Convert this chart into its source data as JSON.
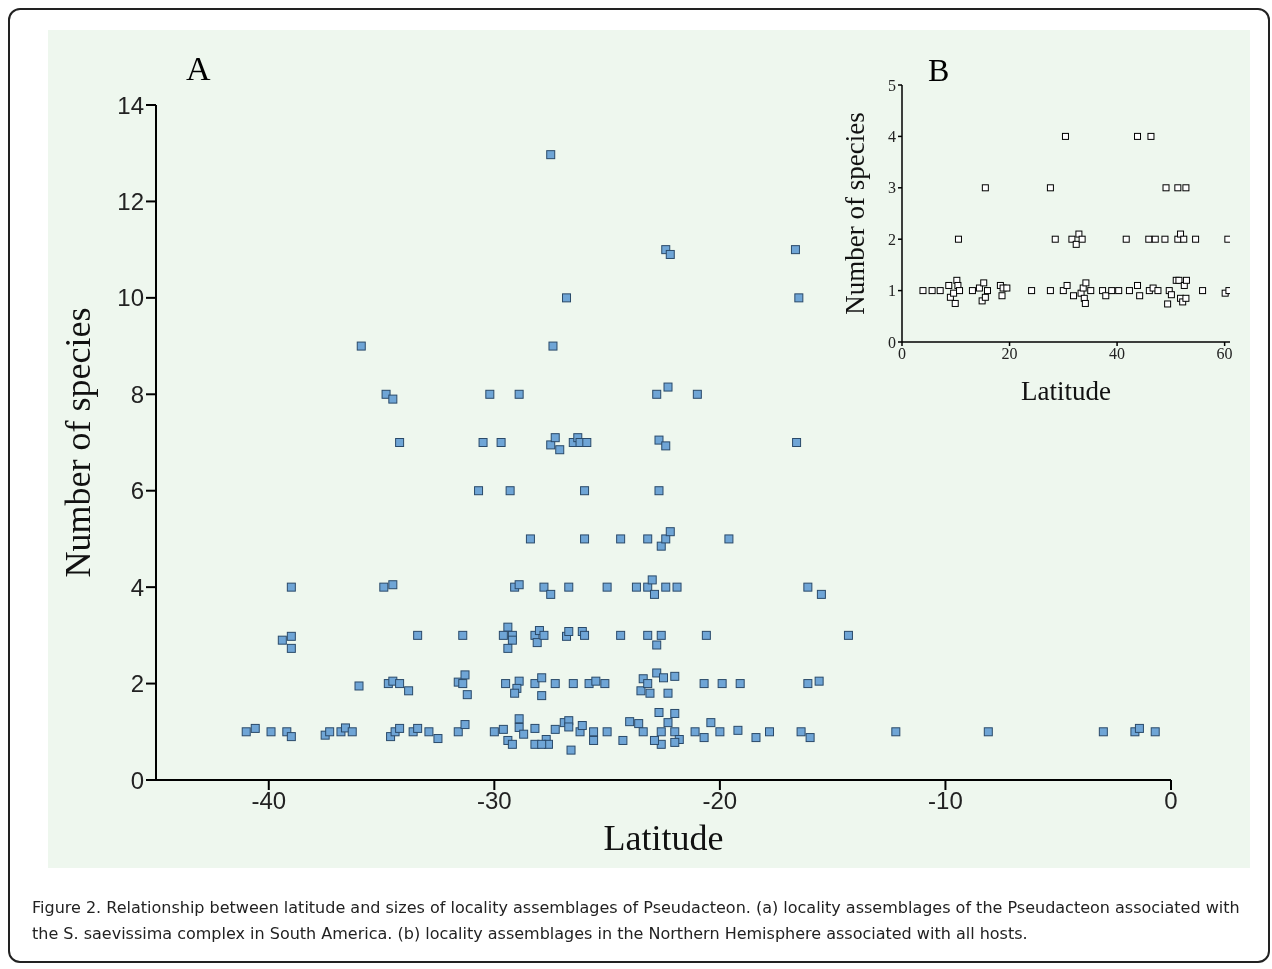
{
  "chart_data": [
    {
      "type": "scatter",
      "title": "A",
      "xlabel": "Latitude",
      "ylabel": "Number of species",
      "xlim": [
        -45,
        0
      ],
      "xticks": [
        -40,
        -30,
        -20,
        -10,
        0
      ],
      "ylim": [
        0,
        14
      ],
      "yticks": [
        0,
        2,
        4,
        6,
        8,
        10,
        12,
        14
      ],
      "marker": "square",
      "grid": false,
      "legend": false,
      "annotations": [
        "Figure 2. Relationship between latitude and sizes of locality assemblages of Pseudacteon. (a) locality assemblages of the Pseudacteon associated with the S. saevissima complex in South America. (b) locality assemblages in the Northern Hemisphere associated with all hosts."
      ],
      "series": [
        {
          "color": "#6fa5d6",
          "x": [
            -27.5,
            -22.4,
            -22.2,
            -16.65,
            -26.8,
            -16.5,
            -35.9,
            -27.4,
            -34.8,
            -34.5,
            -30.2,
            -28.9,
            -22.8,
            -22.3,
            -21.0,
            -34.2,
            -30.5,
            -29.7,
            -27.5,
            -27.3,
            -27.1,
            -26.5,
            -26.3,
            -26.2,
            -25.9,
            -22.7,
            -22.4,
            -16.6,
            -30.7,
            -29.3,
            -26.0,
            -22.7,
            -28.4,
            -26.0,
            -24.4,
            -23.2,
            -22.6,
            -22.4,
            -22.2,
            -19.6,
            -39.0,
            -34.9,
            -34.5,
            -29.1,
            -28.9,
            -27.8,
            -27.5,
            -26.7,
            -25.0,
            -23.7,
            -23.2,
            -23.0,
            -22.9,
            -22.4,
            -21.9,
            -16.1,
            -15.5,
            -39.4,
            -39.0,
            -39.0,
            -33.4,
            -31.4,
            -29.4,
            -29.6,
            -29.2,
            -29.2,
            -29.4,
            -28.2,
            -28.0,
            -28.1,
            -27.8,
            -26.8,
            -26.7,
            -26.1,
            -26.0,
            -24.4,
            -23.2,
            -22.6,
            -22.8,
            -20.6,
            -14.3,
            -36.0,
            -34.7,
            -34.5,
            -34.2,
            -33.8,
            -31.6,
            -31.3,
            -31.4,
            -31.2,
            -29.5,
            -28.9,
            -29.0,
            -29.1,
            -28.2,
            -27.9,
            -27.9,
            -27.3,
            -26.5,
            -25.8,
            -25.5,
            -25.1,
            -23.4,
            -22.8,
            -22.5,
            -22.0,
            -23.5,
            -23.2,
            -23.1,
            -22.3,
            -20.7,
            -19.9,
            -19.1,
            -16.1,
            -15.6,
            -41.0,
            -40.6,
            -39.9,
            -39.2,
            -39.0,
            -37.5,
            -37.3,
            -36.8,
            -36.6,
            -36.3,
            -34.6,
            -34.4,
            -34.2,
            -33.6,
            -33.4,
            -32.9,
            -32.5,
            -31.6,
            -31.3,
            -30.0,
            -29.6,
            -29.4,
            -29.2,
            -28.9,
            -28.9,
            -28.7,
            -28.2,
            -28.2,
            -27.7,
            -27.6,
            -27.3,
            -26.9,
            -26.7,
            -26.7,
            -26.2,
            -26.1,
            -25.6,
            -25.6,
            -25.0,
            -24.3,
            -24.0,
            -23.6,
            -23.4,
            -22.6,
            -22.6,
            -22.7,
            -22.0,
            -22.3,
            -22.0,
            -21.8,
            -21.1,
            -20.7,
            -20.4,
            -20.0,
            -19.2,
            -18.4,
            -17.8,
            -16.4,
            -16.0,
            -27.9,
            -26.6,
            -22.9,
            -22.0,
            -12.2,
            -8.1,
            -3.0,
            -1.6,
            -1.4,
            -0.7
          ],
          "values": [
            12.97,
            11,
            10.9,
            11,
            10,
            10,
            9,
            9,
            8,
            7.9,
            8,
            8,
            8,
            8.15,
            8,
            7,
            7,
            7,
            6.95,
            7.1,
            6.85,
            7,
            7.1,
            7,
            7,
            7.05,
            6.93,
            7,
            6,
            6,
            6,
            6,
            5,
            5,
            5,
            5,
            4.85,
            5,
            5.15,
            5,
            4,
            4,
            4.05,
            4,
            4.05,
            4,
            3.85,
            4,
            4,
            4,
            4,
            4.15,
            3.85,
            4,
            4,
            4,
            3.85,
            2.9,
            2.98,
            2.73,
            3,
            3,
            3.17,
            3,
            3,
            2.9,
            2.73,
            3,
            3.1,
            2.85,
            3,
            2.98,
            3.08,
            3.08,
            3,
            3,
            3,
            3,
            2.8,
            3,
            3,
            1.95,
            2,
            2.05,
            2,
            1.85,
            2.03,
            2.18,
            2,
            1.77,
            2,
            2.05,
            1.9,
            1.8,
            2,
            2.12,
            1.75,
            2,
            2,
            2,
            2.05,
            2,
            2.1,
            2.22,
            2.12,
            2.15,
            1.85,
            2,
            1.8,
            1.8,
            2,
            2,
            2,
            2,
            2.05,
            1,
            1.07,
            1,
            1,
            0.9,
            0.93,
            1,
            1,
            1.08,
            1,
            0.9,
            1,
            1.07,
            1,
            1.07,
            1,
            0.86,
            1,
            1.15,
            1,
            1.05,
            0.82,
            0.74,
            1.09,
            1.27,
            0.95,
            1.07,
            0.74,
            0.84,
            0.74,
            1.05,
            1.19,
            1.23,
            1.1,
            1,
            1.13,
            1,
            0.82,
            1,
            0.82,
            1.21,
            1.17,
            1,
            1,
            0.74,
            1.4,
            1.38,
            1.19,
            1,
            0.84,
            1,
            0.88,
            1.19,
            1,
            1.03,
            0.88,
            1,
            1,
            0.88,
            0.74,
            0.62,
            0.82,
            0.78,
            1,
            1,
            1,
            1,
            1.07,
            1
          ]
        }
      ]
    },
    {
      "type": "scatter",
      "title": "B",
      "xlabel": "Latitude",
      "ylabel": "Number of species",
      "xlim": [
        0,
        61
      ],
      "xticks": [
        0,
        20,
        40,
        60
      ],
      "ylim": [
        0,
        5
      ],
      "yticks": [
        0,
        1,
        2,
        3,
        4,
        5
      ],
      "marker": "square",
      "grid": false,
      "legend": false,
      "series": [
        {
          "color": "#000000",
          "x": [
            30.4,
            43.8,
            46.3,
            15.5,
            27.6,
            49.1,
            51.3,
            52.8,
            10.5,
            28.5,
            31.6,
            32.4,
            32.9,
            33.5,
            41.7,
            45.9,
            47.1,
            48.9,
            51.3,
            51.8,
            52.4,
            54.6,
            60.6,
            3.9,
            5.6,
            7.1,
            8.7,
            9.0,
            9.6,
            9.9,
            10.2,
            10.4,
            10.7,
            13.1,
            14.4,
            14.9,
            15.2,
            15.5,
            15.9,
            18.3,
            18.6,
            18.8,
            19.5,
            24.1,
            27.6,
            30.0,
            30.7,
            31.9,
            33.3,
            33.7,
            33.9,
            34.1,
            34.2,
            35.1,
            37.3,
            37.9,
            39.0,
            40.3,
            42.3,
            43.8,
            44.2,
            46.0,
            46.7,
            47.6,
            49.7,
            50.1,
            51.0,
            51.5,
            49.4,
            51.8,
            52.2,
            52.5,
            52.8,
            52.9,
            55.9,
            60.1,
            60.8
          ],
          "values": [
            4,
            4,
            4,
            3,
            3,
            3,
            3,
            3,
            2,
            2,
            2,
            1.9,
            2.1,
            2,
            2,
            2,
            2,
            2,
            2,
            2.1,
            2,
            2,
            2,
            1,
            1,
            1,
            1.1,
            0.87,
            0.95,
            0.75,
            1.2,
            1.1,
            1,
            1,
            1.05,
            0.8,
            1.15,
            0.87,
            1,
            1.1,
            0.9,
            1.05,
            1.05,
            1,
            1,
            1,
            1.1,
            0.9,
            0.95,
            1.05,
            0.85,
            0.75,
            1.15,
            1,
            1,
            0.9,
            1,
            1,
            1,
            1.1,
            0.9,
            1,
            1.05,
            1,
            1,
            0.92,
            1.2,
            1.2,
            0.74,
            0.85,
            0.78,
            1.1,
            0.85,
            1.2,
            1,
            0.95,
            1
          ]
        }
      ]
    }
  ]
}
